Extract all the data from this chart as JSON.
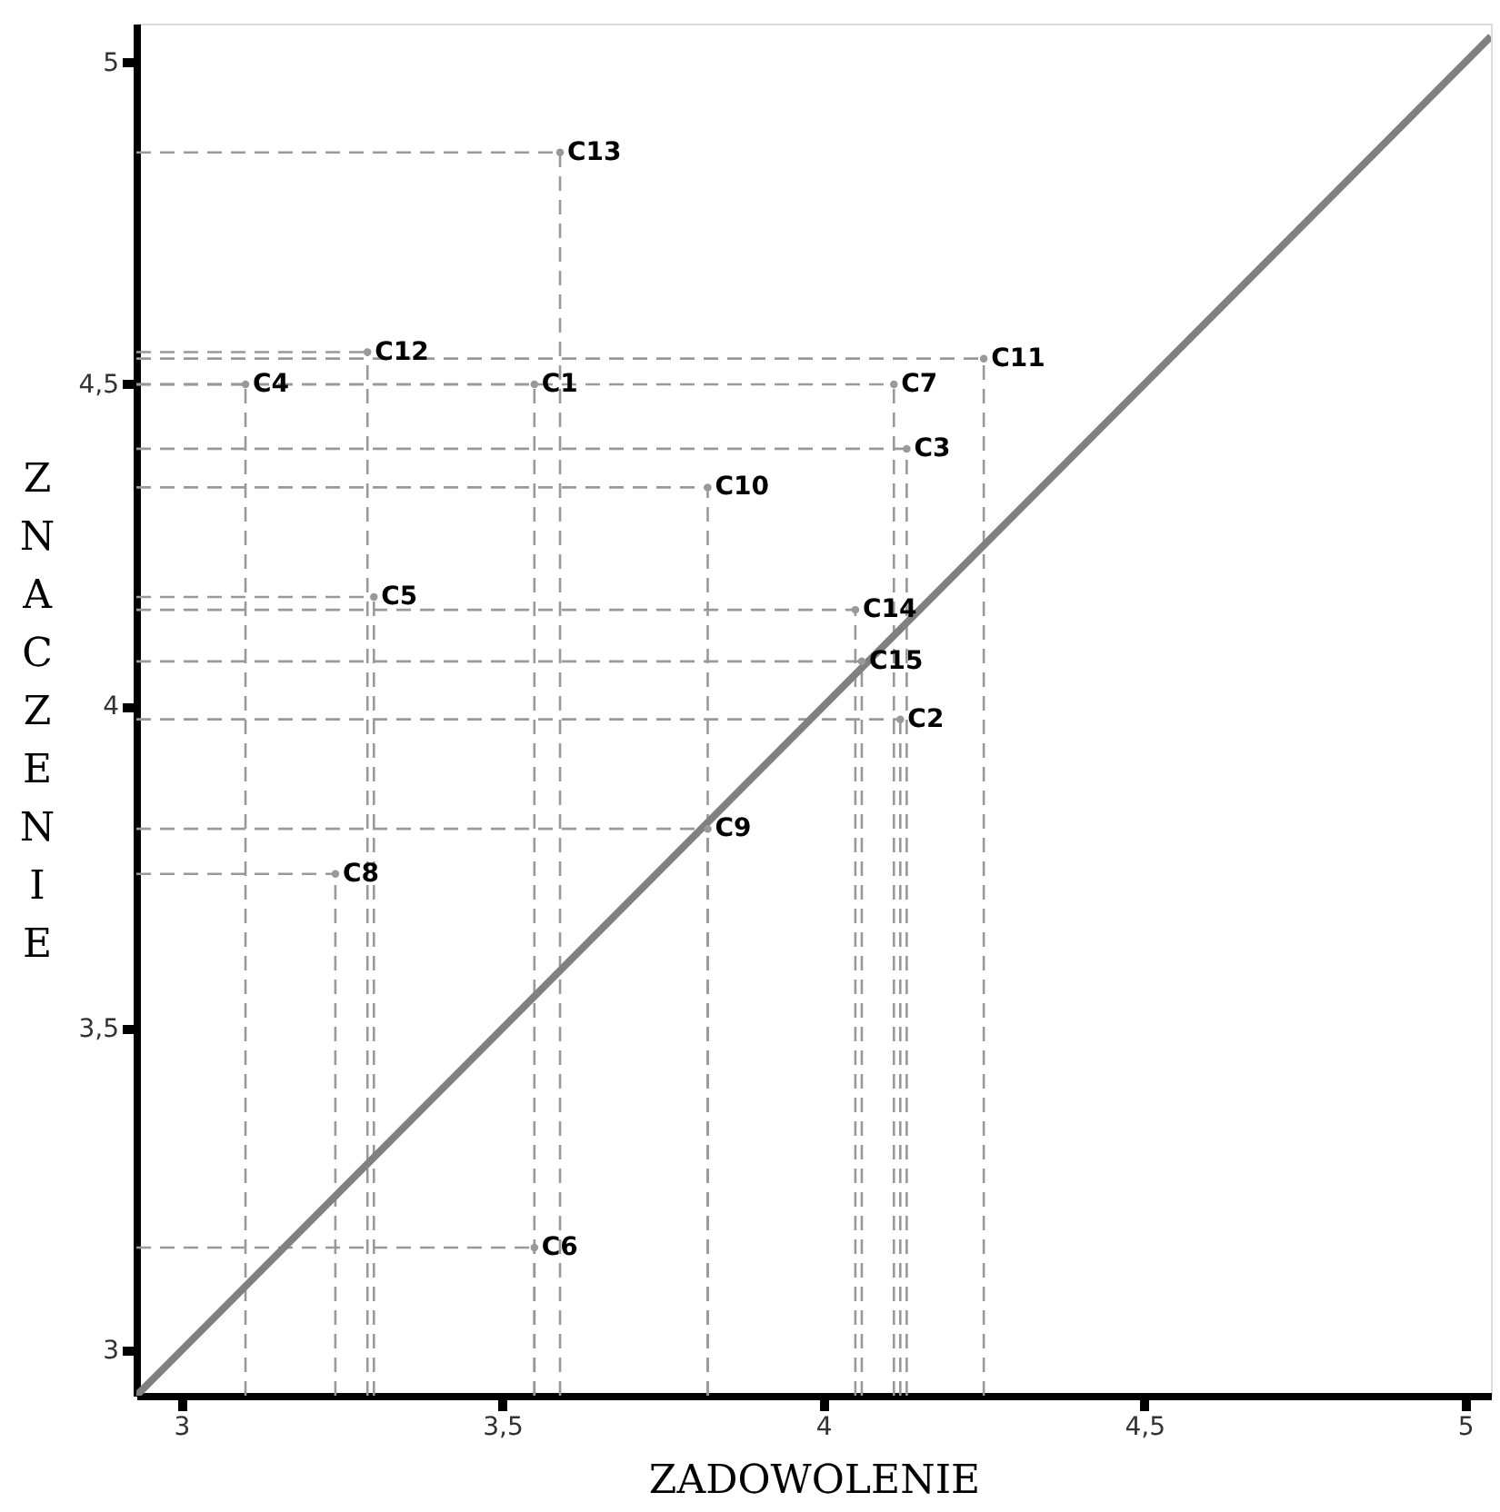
{
  "chart_data": {
    "type": "scatter",
    "xlabel": "ZADOWOLENIE",
    "ylabel": "ZNACZENIE",
    "xlim": [
      2.93,
      5.04
    ],
    "ylim": [
      2.93,
      5.06
    ],
    "xticks": [
      3,
      {
        "value": 3.5,
        "label": "3,5"
      },
      4,
      {
        "value": 4.5,
        "label": "4,5"
      },
      5
    ],
    "yticks": [
      3,
      {
        "value": 3.5,
        "label": "3,5"
      },
      4,
      {
        "value": 4.5,
        "label": "4,5"
      },
      5
    ],
    "series": [
      {
        "color": "#999999",
        "line_style": "dashed",
        "marker": "circle",
        "x": [
          3.55,
          4.12,
          4.13,
          3.1,
          3.3,
          3.55,
          4.11,
          3.24,
          3.82,
          3.82,
          4.25,
          3.29,
          3.59,
          4.05,
          4.06
        ],
        "values": [
          4.5,
          3.98,
          4.4,
          4.5,
          4.17,
          3.16,
          4.5,
          3.74,
          3.81,
          4.34,
          4.54,
          4.55,
          4.86,
          4.15,
          4.07
        ]
      },
      {
        "type": "line",
        "color": "#808080",
        "line_style": "solid",
        "marker": "none",
        "x": [
          2.93,
          5.04
        ],
        "values": [
          2.93,
          5.04
        ]
      }
    ],
    "annotations": [
      {
        "text": "C1",
        "x": 3.55,
        "y": 4.5
      },
      {
        "text": "C2",
        "x": 4.12,
        "y": 3.98
      },
      {
        "text": "C3",
        "x": 4.13,
        "y": 4.4
      },
      {
        "text": "C4",
        "x": 3.1,
        "y": 4.5
      },
      {
        "text": "C5",
        "x": 3.3,
        "y": 4.17
      },
      {
        "text": "C6",
        "x": 3.55,
        "y": 3.16
      },
      {
        "text": "C7",
        "x": 4.11,
        "y": 4.5
      },
      {
        "text": "C8",
        "x": 3.24,
        "y": 3.74
      },
      {
        "text": "C9",
        "x": 3.82,
        "y": 3.81
      },
      {
        "text": "C10",
        "x": 3.82,
        "y": 4.34
      },
      {
        "text": "C11",
        "x": 4.25,
        "y": 4.54
      },
      {
        "text": "C12",
        "x": 3.29,
        "y": 4.55
      },
      {
        "text": "C13",
        "x": 3.59,
        "y": 4.86
      },
      {
        "text": "C14",
        "x": 4.05,
        "y": 4.15
      },
      {
        "text": "C15",
        "x": 4.06,
        "y": 4.07
      }
    ]
  }
}
